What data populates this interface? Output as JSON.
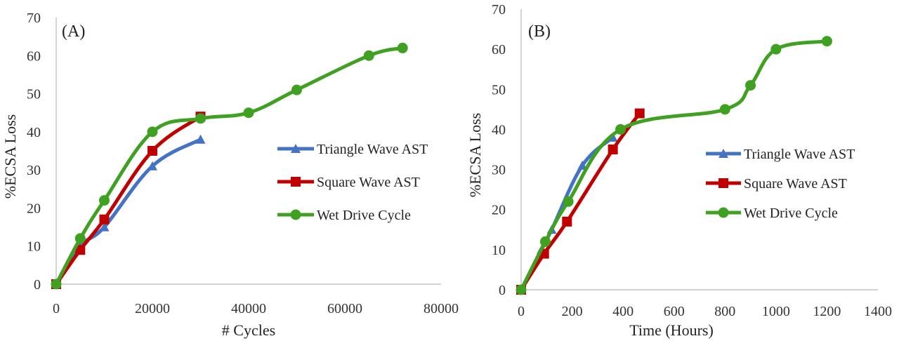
{
  "chart_data": [
    {
      "type": "line",
      "panel_label": "(A)",
      "xlabel": "# Cycles",
      "ylabel": "%ECSA Loss",
      "xlim": [
        0,
        80000
      ],
      "ylim": [
        0,
        70
      ],
      "x_ticks": [
        "0",
        "20000",
        "40000",
        "60000",
        "80000"
      ],
      "y_ticks": [
        "0",
        "10",
        "20",
        "30",
        "40",
        "50",
        "60",
        "70"
      ],
      "legend_position": "right",
      "series": [
        {
          "name": "Triangle Wave AST",
          "color": "#4472c4",
          "marker": "triangle",
          "points": [
            [
              0,
              0
            ],
            [
              5000,
              10
            ],
            [
              10000,
              15
            ],
            [
              20000,
              31
            ],
            [
              30000,
              38
            ]
          ]
        },
        {
          "name": "Square Wave AST",
          "color": "#c00000",
          "marker": "square",
          "points": [
            [
              0,
              0
            ],
            [
              5000,
              9
            ],
            [
              10000,
              17
            ],
            [
              20000,
              35
            ],
            [
              30000,
              44
            ]
          ]
        },
        {
          "name": "Wet Drive Cycle",
          "color": "#3fa021",
          "marker": "circle",
          "points": [
            [
              0,
              0
            ],
            [
              5000,
              12
            ],
            [
              10000,
              22
            ],
            [
              20000,
              40
            ],
            [
              30000,
              43.5
            ],
            [
              40000,
              45
            ],
            [
              50000,
              51
            ],
            [
              65000,
              60
            ],
            [
              72000,
              62
            ]
          ]
        }
      ]
    },
    {
      "type": "line",
      "panel_label": "(B)",
      "xlabel": "Time (Hours)",
      "ylabel": "%ECSA Loss",
      "xlim": [
        0,
        1400
      ],
      "ylim": [
        0,
        70
      ],
      "x_ticks": [
        "0",
        "200",
        "400",
        "600",
        "800",
        "1000",
        "1200",
        "1400"
      ],
      "y_ticks": [
        "0",
        "10",
        "20",
        "30",
        "40",
        "50",
        "60",
        "70"
      ],
      "legend_position": "lower-right",
      "series": [
        {
          "name": "Triangle Wave AST",
          "color": "#4472c4",
          "marker": "triangle",
          "points": [
            [
              0,
              0
            ],
            [
              80,
              10
            ],
            [
              120,
              15
            ],
            [
              240,
              31
            ],
            [
              360,
              38
            ]
          ]
        },
        {
          "name": "Square Wave AST",
          "color": "#c00000",
          "marker": "square",
          "points": [
            [
              0,
              0
            ],
            [
              90,
              9
            ],
            [
              180,
              17
            ],
            [
              360,
              35
            ],
            [
              465,
              44
            ]
          ]
        },
        {
          "name": "Wet Drive Cycle",
          "color": "#3fa021",
          "marker": "circle",
          "points": [
            [
              0,
              0
            ],
            [
              95,
              12
            ],
            [
              185,
              22
            ],
            [
              390,
              40
            ],
            [
              800,
              45
            ],
            [
              900,
              51
            ],
            [
              1000,
              60
            ],
            [
              1200,
              62
            ]
          ]
        }
      ]
    }
  ]
}
